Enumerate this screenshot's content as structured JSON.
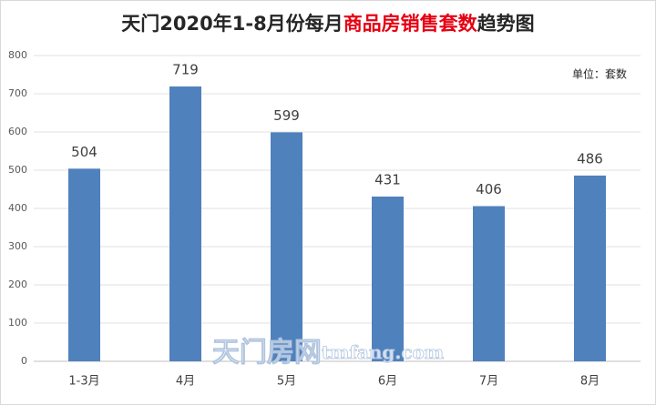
{
  "chart_data": {
    "type": "bar",
    "title": [
      "天门2020年1-8月份每月",
      "商品房销售套数",
      "趋势图"
    ],
    "title_colors": [
      "#262626",
      "#e60012",
      "#262626"
    ],
    "annotation": "单位：套数",
    "watermark": [
      "天门房网",
      "tmfang.com"
    ],
    "categories": [
      "1-3月",
      "4月",
      "5月",
      "6月",
      "7月",
      "8月"
    ],
    "values": [
      504,
      719,
      599,
      431,
      406,
      486
    ],
    "color": "#4f81bd",
    "ylim": [
      0,
      800
    ],
    "yticks": [
      0,
      100,
      200,
      300,
      400,
      500,
      600,
      700,
      800
    ],
    "grid": true
  }
}
